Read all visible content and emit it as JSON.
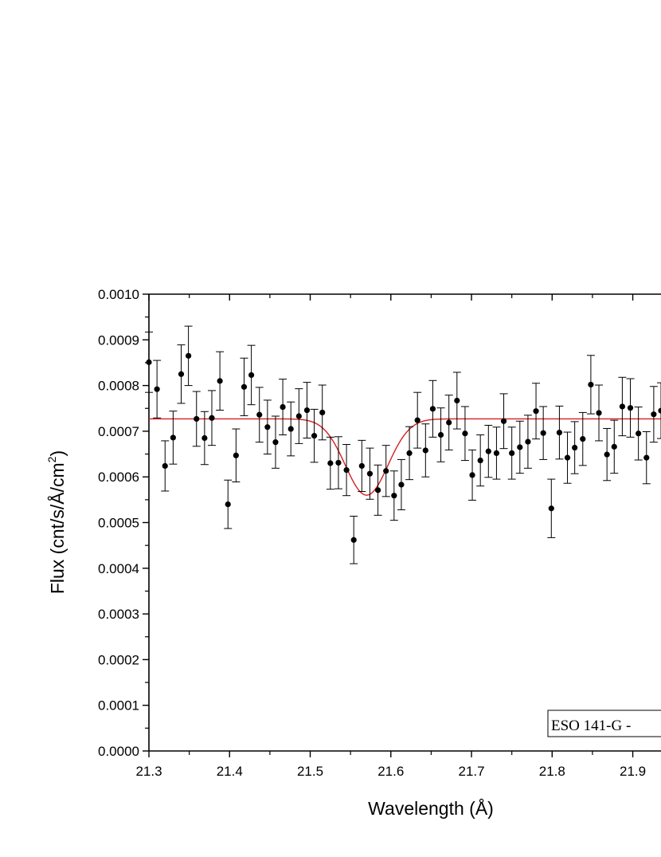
{
  "chart_data": {
    "type": "scatter",
    "xlabel": "Wavelength (Å)",
    "ylabel": "Flux (cnt/s/Å/cm",
    "ylabel_sup": "2",
    "ylabel_close": ")",
    "xlim": [
      21.3,
      21.935
    ],
    "ylim": [
      0,
      0.001
    ],
    "x_ticks": [
      "21.3",
      "21.4",
      "21.5",
      "21.6",
      "21.7",
      "21.8",
      "21.9"
    ],
    "y_ticks": [
      "0.0000",
      "0.0001",
      "0.0002",
      "0.0003",
      "0.0004",
      "0.0005",
      "0.0006",
      "0.0007",
      "0.0008",
      "0.0009",
      "0.0010"
    ],
    "annotation": "ESO 141-G -",
    "grid": false,
    "series": [
      {
        "kind": "data-with-error-bars",
        "color": "#000000",
        "x": [
          21.3,
          21.31,
          21.32,
          21.33,
          21.34,
          21.349,
          21.359,
          21.369,
          21.378,
          21.388,
          21.398,
          21.408,
          21.418,
          21.427,
          21.437,
          21.447,
          21.457,
          21.466,
          21.476,
          21.486,
          21.496,
          21.505,
          21.515,
          21.525,
          21.535,
          21.545,
          21.554,
          21.564,
          21.574,
          21.584,
          21.594,
          21.604,
          21.613,
          21.623,
          21.633,
          21.643,
          21.652,
          21.662,
          21.672,
          21.682,
          21.692,
          21.701,
          21.711,
          21.721,
          21.731,
          21.74,
          21.75,
          21.76,
          21.77,
          21.78,
          21.789,
          21.799,
          21.809,
          21.819,
          21.828,
          21.838,
          21.848,
          21.858,
          21.868,
          21.877,
          21.887,
          21.897,
          21.907,
          21.917,
          21.926,
          21.935
        ],
        "y": [
          0.000851,
          0.000792,
          0.000624,
          0.000686,
          0.000825,
          0.000865,
          0.000727,
          0.000685,
          0.000729,
          0.00081,
          0.00054,
          0.000647,
          0.000797,
          0.000823,
          0.000736,
          0.000709,
          0.000676,
          0.000753,
          0.000705,
          0.000733,
          0.000746,
          0.00069,
          0.000741,
          0.00063,
          0.000631,
          0.000615,
          0.000462,
          0.000624,
          0.000607,
          0.000571,
          0.000613,
          0.000559,
          0.000583,
          0.000652,
          0.000724,
          0.000658,
          0.000749,
          0.000692,
          0.000719,
          0.000767,
          0.000695,
          0.000604,
          0.000636,
          0.000656,
          0.000652,
          0.000722,
          0.000652,
          0.000665,
          0.000677,
          0.000744,
          0.000696,
          0.000531,
          0.000697,
          0.000642,
          0.000664,
          0.000683,
          0.000802,
          0.00074,
          0.000649,
          0.000666,
          0.000754,
          0.000751,
          0.000695,
          0.000642,
          0.000737,
          0.000745
        ],
        "yerr": [
          6.6e-05,
          6.3e-05,
          5.5e-05,
          5.8e-05,
          6.4e-05,
          6.5e-05,
          6e-05,
          5.8e-05,
          6e-05,
          6.4e-05,
          5.3e-05,
          5.8e-05,
          6.3e-05,
          6.5e-05,
          6e-05,
          5.9e-05,
          5.7e-05,
          6.1e-05,
          5.9e-05,
          6e-05,
          6.1e-05,
          5.8e-05,
          6e-05,
          5.7e-05,
          5.7e-05,
          5.6e-05,
          5.2e-05,
          5.6e-05,
          5.6e-05,
          5.5e-05,
          5.6e-05,
          5.4e-05,
          5.5e-05,
          5.8e-05,
          6.1e-05,
          5.8e-05,
          6.2e-05,
          5.9e-05,
          6e-05,
          6.2e-05,
          5.9e-05,
          5.5e-05,
          5.6e-05,
          5.7e-05,
          5.7e-05,
          6e-05,
          5.7e-05,
          5.7e-05,
          5.8e-05,
          6.1e-05,
          5.8e-05,
          6.4e-05,
          5.8e-05,
          5.6e-05,
          5.7e-05,
          5.8e-05,
          6.4e-05,
          6.1e-05,
          5.7e-05,
          5.8e-05,
          6.4e-05,
          6.4e-05,
          5.8e-05,
          5.7e-05,
          6.1e-05,
          6.1e-05
        ]
      },
      {
        "kind": "gaussian-absorption-fit",
        "color": "#d61f1f",
        "continuum": 0.000727,
        "center": 21.57,
        "depth": 0.000167,
        "sigma": 0.0265
      }
    ]
  }
}
